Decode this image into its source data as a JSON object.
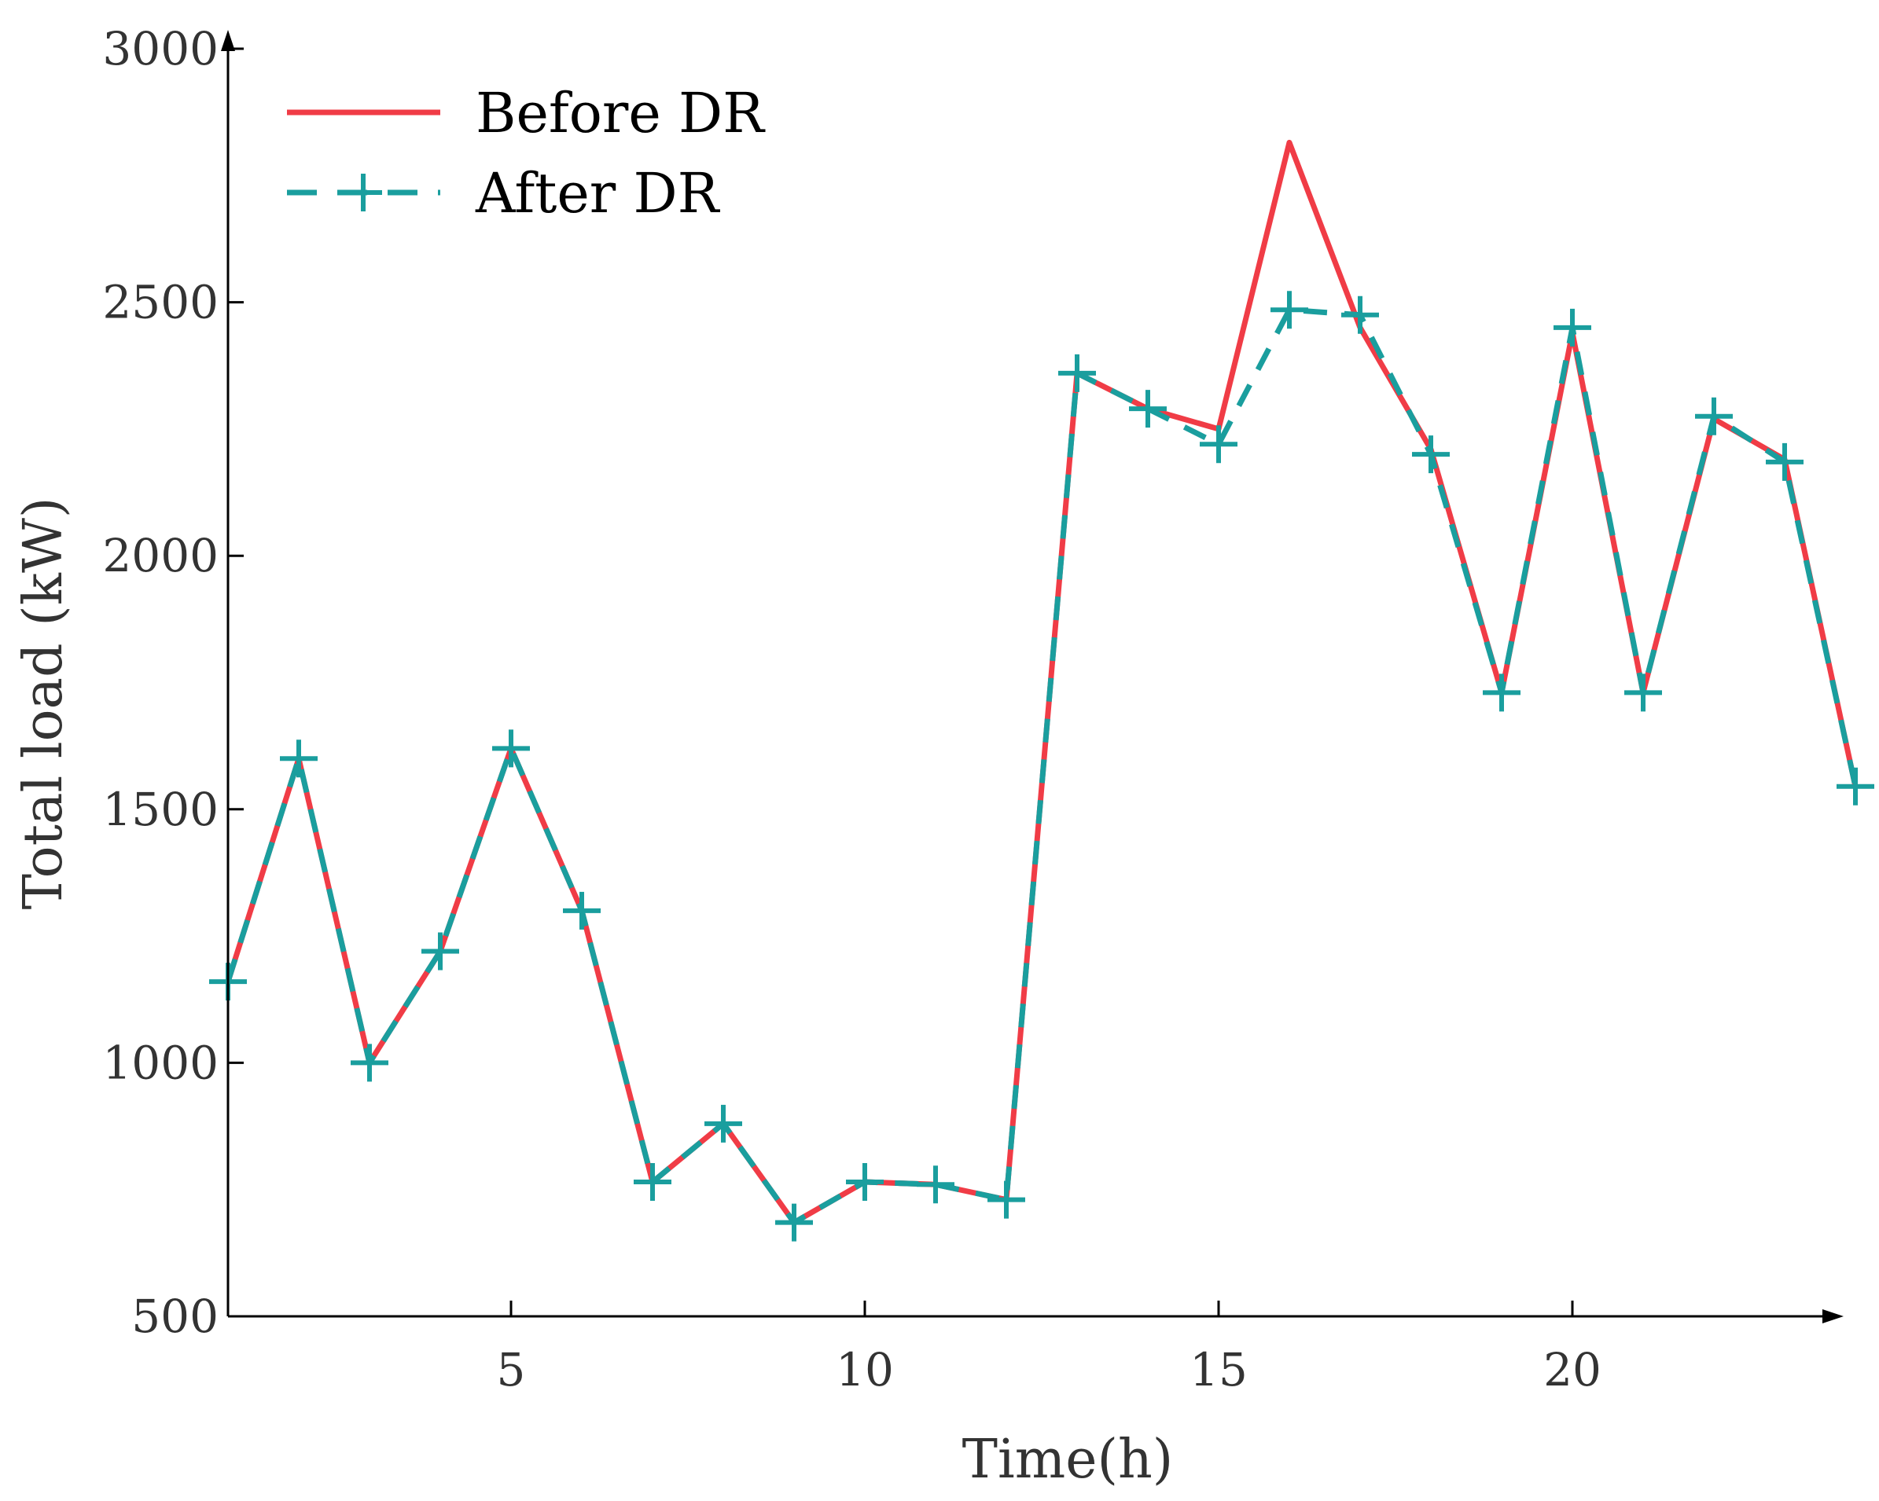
{
  "chart_data": {
    "type": "line",
    "title": "",
    "xlabel": "Time(h)",
    "ylabel": "Total load (kW)",
    "xlim": [
      1,
      24
    ],
    "ylim": [
      500,
      3000
    ],
    "xticks": [
      5,
      10,
      15,
      20
    ],
    "yticks": [
      500,
      1000,
      1500,
      2000,
      2500,
      3000
    ],
    "x": [
      1,
      2,
      3,
      4,
      5,
      6,
      7,
      8,
      9,
      10,
      11,
      12,
      13,
      14,
      15,
      16,
      17,
      18,
      19,
      20,
      21,
      22,
      23,
      24
    ],
    "series": [
      {
        "name": "Before DR",
        "color": "#f03c46",
        "style": "solid",
        "values": [
          1160,
          1600,
          1000,
          1220,
          1620,
          1300,
          765,
          880,
          685,
          765,
          760,
          730,
          2360,
          2290,
          2250,
          2815,
          2450,
          2210,
          1730,
          2440,
          1730,
          2270,
          2190,
          1545
        ]
      },
      {
        "name": "After DR",
        "color": "#1a9e9e",
        "style": "dashed",
        "marker": "plus",
        "values": [
          1160,
          1600,
          1000,
          1220,
          1620,
          1300,
          765,
          880,
          685,
          765,
          760,
          730,
          2360,
          2290,
          2220,
          2485,
          2475,
          2200,
          1730,
          2450,
          1730,
          2275,
          2185,
          1545
        ]
      }
    ],
    "legend": {
      "position": "top-left",
      "entries": [
        "Before DR",
        "After DR"
      ]
    }
  }
}
